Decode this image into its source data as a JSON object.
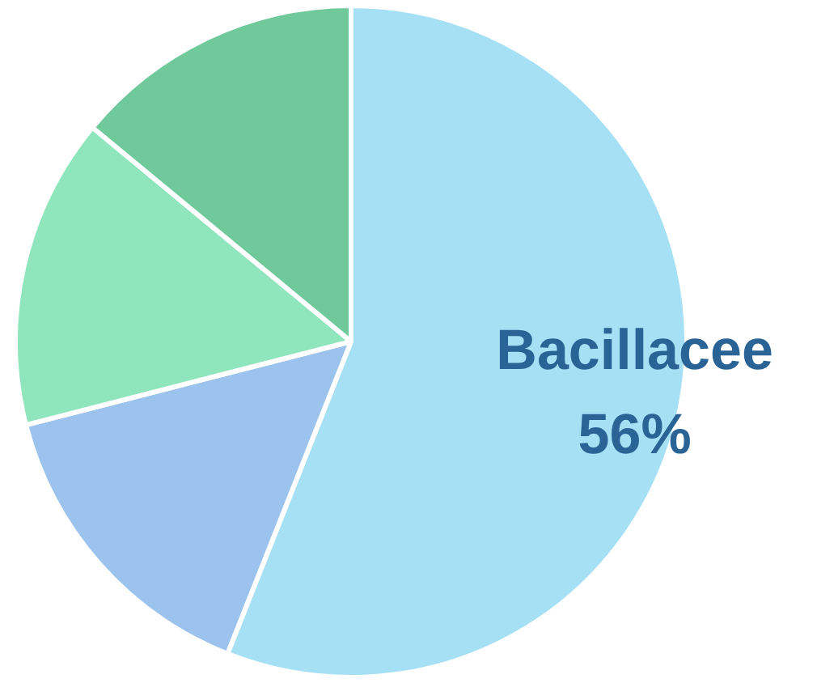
{
  "chart_data": {
    "type": "pie",
    "categories": [
      "Bacillacee",
      null,
      null,
      null
    ],
    "values": [
      56,
      15,
      15,
      14
    ],
    "colors": [
      "#a6e0f5",
      "#9cc3ee",
      "#8fe6bd",
      "#6fc99a"
    ],
    "value_labels": [
      "56%",
      null,
      null,
      null
    ]
  }
}
